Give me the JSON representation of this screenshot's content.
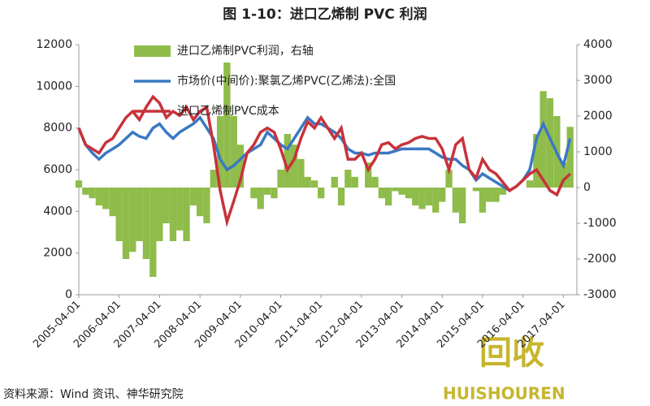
{
  "chart_data": {
    "type": "line",
    "title": "图 1-10：进口乙烯制 PVC 利润",
    "source": "资料来源：Wind 资讯、神华研究院",
    "watermark": [
      "回收",
      "HUISHOUREN"
    ],
    "x": [
      "2005-04-01",
      "2005-06-01",
      "2005-08-01",
      "2005-10-01",
      "2005-12-01",
      "2006-02-01",
      "2006-04-01",
      "2006-06-01",
      "2006-08-01",
      "2006-10-01",
      "2006-12-01",
      "2007-02-01",
      "2007-04-01",
      "2007-06-01",
      "2007-08-01",
      "2007-10-01",
      "2007-12-01",
      "2008-02-01",
      "2008-04-01",
      "2008-06-01",
      "2008-08-01",
      "2008-10-01",
      "2008-12-01",
      "2009-02-01",
      "2009-04-01",
      "2009-06-01",
      "2009-08-01",
      "2009-10-01",
      "2009-12-01",
      "2010-02-01",
      "2010-04-01",
      "2010-06-01",
      "2010-08-01",
      "2010-10-01",
      "2010-12-01",
      "2011-02-01",
      "2011-04-01",
      "2011-06-01",
      "2011-08-01",
      "2011-10-01",
      "2011-12-01",
      "2012-02-01",
      "2012-04-01",
      "2012-06-01",
      "2012-08-01",
      "2012-10-01",
      "2012-12-01",
      "2013-02-01",
      "2013-04-01",
      "2013-06-01",
      "2013-08-01",
      "2013-10-01",
      "2013-12-01",
      "2014-02-01",
      "2014-04-01",
      "2014-06-01",
      "2014-08-01",
      "2014-10-01",
      "2014-12-01",
      "2015-02-01",
      "2015-04-01",
      "2015-06-01",
      "2015-08-01",
      "2015-10-01",
      "2015-12-01",
      "2016-02-01",
      "2016-04-01",
      "2016-06-01",
      "2016-08-01",
      "2016-10-01",
      "2016-12-01",
      "2017-02-01",
      "2017-04-01",
      "2017-06-01"
    ],
    "xlim": [
      "2005-04-01",
      "2017-08-01"
    ],
    "xticks": [
      "2005-04-01",
      "2006-04-01",
      "2007-04-01",
      "2008-04-01",
      "2009-04-01",
      "2010-04-01",
      "2011-04-01",
      "2012-04-01",
      "2013-04-01",
      "2014-04-01",
      "2015-04-01",
      "2016-04-01",
      "2017-04-01"
    ],
    "ylim": [
      0,
      12000
    ],
    "yticks": [
      0,
      2000,
      4000,
      6000,
      8000,
      10000,
      12000
    ],
    "y2lim": [
      -3000,
      4000
    ],
    "y2ticks": [
      -3000,
      -2000,
      -1000,
      0,
      1000,
      2000,
      3000,
      4000
    ],
    "series": [
      {
        "name": "进口乙烯制PVC利润，右轴",
        "color": "#8fbc4a",
        "axis": "y2",
        "style": "bar",
        "values": [
          200,
          -200,
          -300,
          -500,
          -600,
          -800,
          -1500,
          -2000,
          -1800,
          -1500,
          -2000,
          -2500,
          -1500,
          -1000,
          -1500,
          -1200,
          -1500,
          -500,
          -800,
          -1000,
          500,
          2000,
          3500,
          2000,
          1200,
          0,
          -300,
          -600,
          -200,
          -300,
          500,
          1500,
          1200,
          800,
          300,
          200,
          -300,
          0,
          300,
          -500,
          500,
          300,
          0,
          700,
          300,
          -300,
          -500,
          -100,
          -200,
          -300,
          -500,
          -600,
          -500,
          -700,
          -400,
          500,
          -700,
          -1000,
          0,
          -100,
          -700,
          -400,
          -400,
          -200,
          0,
          0,
          0,
          200,
          1500,
          2700,
          2500,
          2000,
          700,
          1700
        ]
      },
      {
        "name": "市场价(中间价):聚氯乙烯PVC(乙烯法):全国",
        "color": "#3a78c3",
        "style": "line",
        "values": [
          8000,
          7200,
          6800,
          6500,
          6800,
          7000,
          7200,
          7500,
          7800,
          7600,
          7500,
          8000,
          8200,
          7800,
          7500,
          7800,
          8000,
          8200,
          8500,
          8000,
          7500,
          6500,
          6000,
          6200,
          6500,
          6800,
          7000,
          7200,
          7800,
          7500,
          7200,
          7000,
          7500,
          8000,
          8500,
          8200,
          8200,
          8000,
          7800,
          7500,
          7000,
          6800,
          6800,
          6700,
          6800,
          6800,
          6800,
          6900,
          7000,
          7000,
          7000,
          7000,
          7000,
          6800,
          6600,
          6500,
          6500,
          6200,
          6000,
          5500,
          5800,
          5600,
          5400,
          5200,
          5000,
          5200,
          5500,
          6000,
          7500,
          8200,
          7500,
          6800,
          6200,
          7500
        ]
      },
      {
        "name": "进口乙烯制PVC成本",
        "color": "#c8323a",
        "style": "line",
        "values": [
          8000,
          7200,
          7000,
          6800,
          7300,
          7500,
          8000,
          8500,
          8800,
          8400,
          9000,
          9500,
          9200,
          8500,
          8800,
          8600,
          9000,
          8400,
          8800,
          9000,
          7200,
          5000,
          3500,
          4500,
          5500,
          6800,
          7200,
          7800,
          8000,
          7800,
          7000,
          6000,
          6500,
          7500,
          8300,
          8000,
          8500,
          8000,
          7500,
          8000,
          6500,
          6500,
          6800,
          6000,
          6500,
          7200,
          7300,
          7000,
          7200,
          7300,
          7500,
          7600,
          7500,
          7500,
          7000,
          6000,
          7200,
          7500,
          6000,
          5600,
          6500,
          6000,
          5800,
          5400,
          5000,
          5200,
          5500,
          5800,
          6000,
          5500,
          5000,
          4800,
          5500,
          5800
        ]
      }
    ]
  }
}
